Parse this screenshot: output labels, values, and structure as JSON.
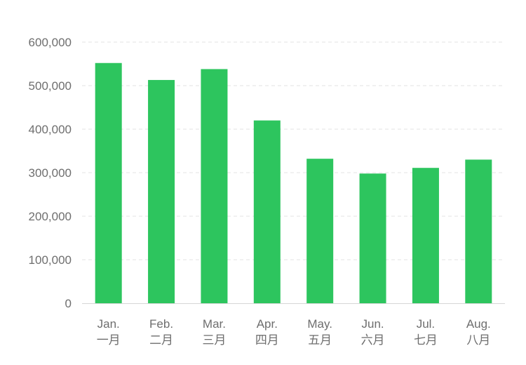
{
  "chart_data": {
    "type": "bar",
    "title": "",
    "xlabel": "",
    "ylabel": "",
    "categories": [
      {
        "en": "Jan.",
        "zh": "一月"
      },
      {
        "en": "Feb.",
        "zh": "二月"
      },
      {
        "en": "Mar.",
        "zh": "三月"
      },
      {
        "en": "Apr.",
        "zh": "四月"
      },
      {
        "en": "May.",
        "zh": "五月"
      },
      {
        "en": "Jun.",
        "zh": "六月"
      },
      {
        "en": "Jul.",
        "zh": "七月"
      },
      {
        "en": "Aug.",
        "zh": "八月"
      }
    ],
    "values": [
      552000,
      513000,
      538000,
      420000,
      332000,
      298000,
      311000,
      330000
    ],
    "ylim": [
      0,
      600000
    ],
    "yticks": [
      0,
      100000,
      200000,
      300000,
      400000,
      500000,
      600000
    ],
    "ytick_labels": [
      "0",
      "100,000",
      "200,000",
      "300,000",
      "400,000",
      "500,000",
      "600,000"
    ],
    "grid": true,
    "legend": "none",
    "colors": {
      "bar": "#2dc55e",
      "grid": "#e3e3e3",
      "axis": "#d6d6d6",
      "text": "#6e6e6e"
    }
  }
}
